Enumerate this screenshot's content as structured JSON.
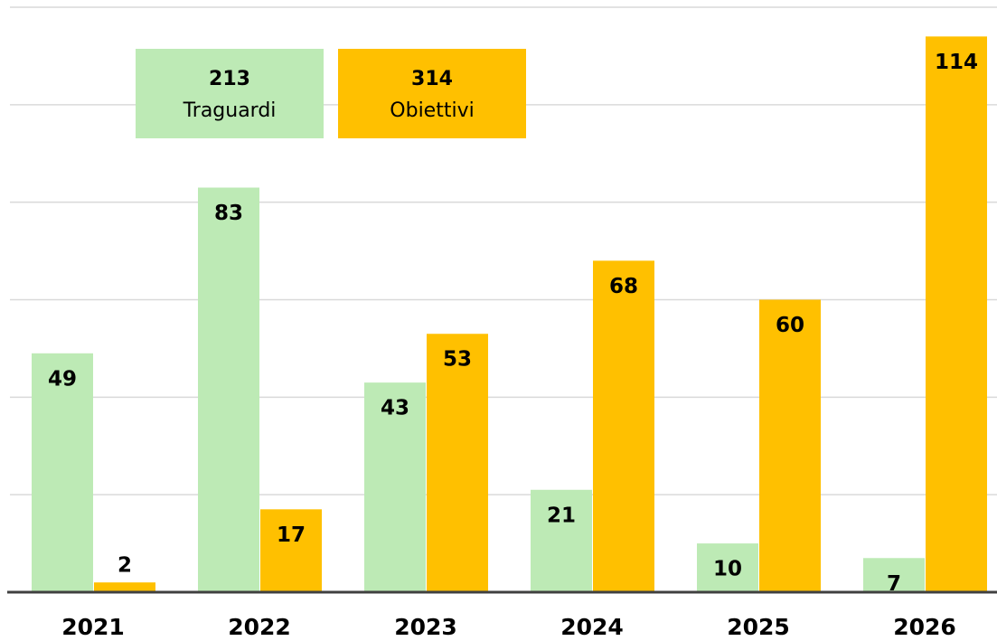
{
  "chart_data": {
    "type": "bar",
    "categories": [
      "2021",
      "2022",
      "2023",
      "2024",
      "2025",
      "2026"
    ],
    "series": [
      {
        "name": "Traguardi",
        "total": 213,
        "color": "#bdeab5",
        "values": [
          49,
          83,
          43,
          21,
          10,
          7
        ]
      },
      {
        "name": "Obiettivi",
        "total": 314,
        "color": "#ffc000",
        "values": [
          2,
          17,
          53,
          68,
          60,
          114
        ]
      }
    ],
    "ylim": [
      0,
      120
    ],
    "yticks": [
      0,
      20,
      40,
      60,
      80,
      100,
      120
    ],
    "grid": true
  }
}
